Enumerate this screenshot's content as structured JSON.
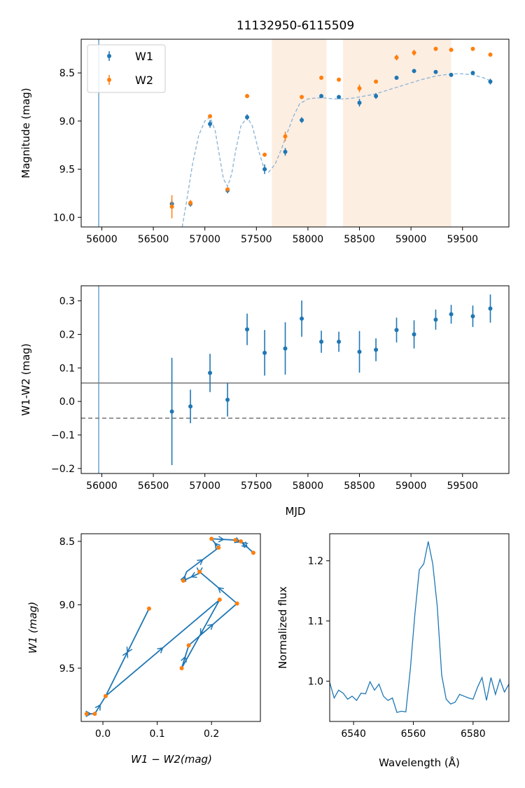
{
  "title": "11132950-6115509",
  "chart_data": [
    {
      "type": "scatter",
      "panel": "light-curve",
      "title": "11132950-6115509",
      "xlabel": "",
      "ylabel": "Magnitude (mag)",
      "xlim": [
        55800,
        59950
      ],
      "ylim": [
        10.1,
        8.15
      ],
      "y_inverted": true,
      "xticks": [
        "56000",
        "56500",
        "57000",
        "57500",
        "58000",
        "58500",
        "59000",
        "59500"
      ],
      "yticks": [
        "8.5",
        "9.0",
        "9.5",
        "10.0"
      ],
      "legend": {
        "placement": "top-left",
        "entries": [
          "W1",
          "W2"
        ]
      },
      "vertical_line_x": 55970,
      "shaded_ranges": [
        [
          57650,
          58180
        ],
        [
          58340,
          59390
        ]
      ],
      "series": [
        {
          "name": "W1",
          "color": "#1f77b4",
          "x": [
            56680,
            56860,
            57050,
            57220,
            57410,
            57580,
            57780,
            57940,
            58130,
            58300,
            58500,
            58660,
            58860,
            59030,
            59240,
            59390,
            59600,
            59770
          ],
          "y": [
            9.86,
            9.86,
            9.03,
            9.72,
            8.96,
            9.5,
            9.32,
            8.99,
            8.74,
            8.75,
            8.81,
            8.74,
            8.55,
            8.48,
            8.49,
            8.52,
            8.5,
            8.59
          ],
          "err": [
            0.04,
            0.03,
            0.04,
            0.03,
            0.03,
            0.05,
            0.04,
            0.03,
            0.02,
            0.02,
            0.04,
            0.03,
            0.02,
            0.02,
            0.02,
            0.02,
            0.02,
            0.03
          ]
        },
        {
          "name": "W2",
          "color": "#ff7f0e",
          "x": [
            56680,
            56860,
            57050,
            57220,
            57410,
            57580,
            57780,
            57940,
            58130,
            58300,
            58500,
            58660,
            58860,
            59030,
            59240,
            59390,
            59600,
            59770
          ],
          "y": [
            9.89,
            9.85,
            8.95,
            9.71,
            8.74,
            9.35,
            9.16,
            8.75,
            8.55,
            8.57,
            8.66,
            8.59,
            8.34,
            8.29,
            8.25,
            8.26,
            8.25,
            8.31
          ],
          "err": [
            0.12,
            0.03,
            0.02,
            0.02,
            0.02,
            0.02,
            0.05,
            0.02,
            0.02,
            0.02,
            0.04,
            0.02,
            0.03,
            0.03,
            0.02,
            0.02,
            0.02,
            0.02
          ]
        }
      ],
      "fit_curve": {
        "style": "dashed",
        "color": "#8fb7d6",
        "x": [
          56780,
          56820,
          56880,
          56940,
          57000,
          57050,
          57100,
          57140,
          57180,
          57220,
          57260,
          57300,
          57350,
          57410,
          57460,
          57520,
          57570,
          57620,
          57680,
          57740,
          57800,
          57860,
          57920,
          58000,
          58080,
          58160,
          58250,
          58350,
          58450,
          58550,
          58650,
          58800,
          58950,
          59100,
          59250,
          59400,
          59500,
          59600,
          59700,
          59770
        ],
        "y": [
          10.1,
          9.85,
          9.45,
          9.15,
          9.0,
          8.96,
          9.1,
          9.35,
          9.6,
          9.68,
          9.55,
          9.3,
          9.05,
          8.96,
          9.05,
          9.3,
          9.48,
          9.53,
          9.45,
          9.3,
          9.12,
          8.95,
          8.82,
          8.77,
          8.76,
          8.76,
          8.77,
          8.77,
          8.76,
          8.74,
          8.72,
          8.67,
          8.62,
          8.57,
          8.53,
          8.51,
          8.51,
          8.52,
          8.55,
          8.58
        ]
      }
    },
    {
      "type": "scatter",
      "panel": "color-curve",
      "title": "",
      "xlabel": "MJD",
      "ylabel": "W1-W2 (mag)",
      "xlim": [
        55800,
        59950
      ],
      "ylim": [
        -0.215,
        0.345
      ],
      "xticks": [
        "56000",
        "56500",
        "57000",
        "57500",
        "58000",
        "58500",
        "59000",
        "59500"
      ],
      "yticks": [
        "−0.2",
        "−0.1",
        "0.0",
        "0.1",
        "0.2",
        "0.3"
      ],
      "vertical_line_x": 55970,
      "hline_solid": 0.055,
      "hline_dashed": -0.05,
      "series": [
        {
          "name": "W1-W2",
          "color": "#1f77b4",
          "x": [
            56680,
            56860,
            57050,
            57220,
            57410,
            57580,
            57780,
            57940,
            58130,
            58300,
            58500,
            58660,
            58860,
            59030,
            59240,
            59390,
            59600,
            59770
          ],
          "y": [
            -0.03,
            -0.015,
            0.085,
            0.005,
            0.215,
            0.145,
            0.158,
            0.247,
            0.178,
            0.178,
            0.148,
            0.154,
            0.213,
            0.2,
            0.244,
            0.26,
            0.254,
            0.277
          ],
          "err": [
            0.16,
            0.05,
            0.057,
            0.05,
            0.047,
            0.068,
            0.078,
            0.054,
            0.033,
            0.03,
            0.062,
            0.034,
            0.037,
            0.042,
            0.03,
            0.028,
            0.032,
            0.042
          ]
        }
      ]
    },
    {
      "type": "line",
      "panel": "color-magnitude",
      "title": "",
      "xlabel": "W1 − W2(mag)",
      "ylabel": "W1 (mag)",
      "xlim": [
        -0.04,
        0.29
      ],
      "ylim": [
        9.92,
        8.44
      ],
      "y_inverted": true,
      "xticks": [
        "0.0",
        "0.1",
        "0.2"
      ],
      "yticks": [
        "8.5",
        "9.0",
        "9.5"
      ],
      "path": {
        "color": "#1f77b4",
        "x": [
          -0.03,
          -0.015,
          0.005,
          0.085,
          0.005,
          0.215,
          0.145,
          0.158,
          0.247,
          0.178,
          0.178,
          0.148,
          0.154,
          0.213,
          0.2,
          0.244,
          0.26,
          0.254,
          0.277
        ],
        "y": [
          9.86,
          9.86,
          9.72,
          9.03,
          9.72,
          8.96,
          9.5,
          9.32,
          8.99,
          8.74,
          8.75,
          8.81,
          8.74,
          8.55,
          8.48,
          8.49,
          8.52,
          8.5,
          8.59
        ]
      },
      "points": {
        "color": "#ff7f0e",
        "x": [
          -0.03,
          -0.015,
          0.085,
          0.005,
          0.215,
          0.145,
          0.158,
          0.247,
          0.178,
          0.148,
          0.213,
          0.2,
          0.244,
          0.254,
          0.277
        ],
        "y": [
          9.86,
          9.86,
          9.03,
          9.72,
          8.96,
          9.5,
          9.32,
          8.99,
          8.74,
          8.81,
          8.55,
          8.48,
          8.49,
          8.5,
          8.59
        ]
      }
    },
    {
      "type": "line",
      "panel": "spectrum",
      "title": "",
      "xlabel": "Wavelength (Å)",
      "ylabel": "Normalized flux",
      "xlim": [
        6532,
        6592
      ],
      "ylim": [
        0.933,
        1.245
      ],
      "xticks": [
        "6540",
        "6560",
        "6580"
      ],
      "yticks": [
        "1.0",
        "1.1",
        "1.2"
      ],
      "series": [
        {
          "name": "spectrum",
          "color": "#1f77b4",
          "x": [
            6532,
            6533.5,
            6535,
            6536.5,
            6538,
            6539.5,
            6541,
            6542.5,
            6544,
            6545.5,
            6547,
            6548.5,
            6550,
            6551.5,
            6553,
            6554.5,
            6556,
            6557.5,
            6559,
            6560.5,
            6562,
            6563.5,
            6565,
            6566.5,
            6568,
            6569.5,
            6571,
            6572.5,
            6574,
            6575.5,
            6577,
            6578.5,
            6580,
            6581.5,
            6583,
            6584.5,
            6586,
            6587.5,
            6589,
            6590.5,
            6592
          ],
          "y": [
            0.998,
            0.972,
            0.985,
            0.98,
            0.97,
            0.975,
            0.968,
            0.98,
            0.979,
            0.999,
            0.985,
            0.995,
            0.975,
            0.968,
            0.972,
            0.948,
            0.95,
            0.949,
            1.02,
            1.11,
            1.185,
            1.195,
            1.232,
            1.195,
            1.125,
            1.01,
            0.97,
            0.962,
            0.965,
            0.978,
            0.975,
            0.972,
            0.97,
            0.99,
            1.006,
            0.968,
            1.006,
            0.978,
            1.003,
            0.982,
            0.995
          ]
        }
      ]
    }
  ]
}
